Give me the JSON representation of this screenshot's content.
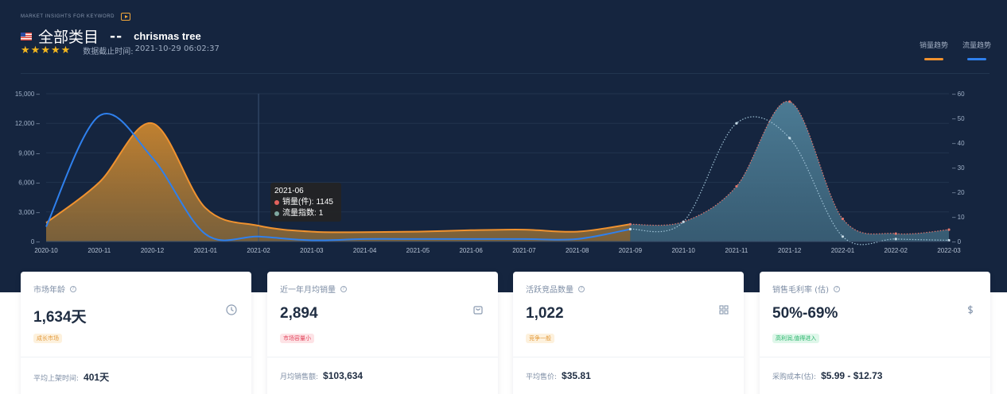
{
  "header": {
    "overline": "MARKET INSIGHTS FOR KEYWORD",
    "category": "全部类目",
    "separator": "--",
    "keyword": "chrismas tree",
    "stars": [
      "★",
      "★",
      "★",
      "★",
      "★"
    ],
    "update_label": "数据截止时间:",
    "update_time": "2021-10-29 06:02:37"
  },
  "legend": [
    {
      "label": "销量趋势",
      "color": "#f0922f"
    },
    {
      "label": "流量趋势",
      "color": "#2f80ed"
    }
  ],
  "chart_data": {
    "type": "area",
    "categories": [
      "2020-10",
      "2020-11",
      "2020-12",
      "2021-01",
      "2021-02",
      "2021-03",
      "2021-04",
      "2021-05",
      "2021-06",
      "2021-07",
      "2021-08",
      "2021-09",
      "2021-10",
      "2021-11",
      "2021-12",
      "2022-01",
      "2022-02",
      "2022-03"
    ],
    "y_left_ticks": [
      "0",
      "3,000",
      "6,000",
      "9,000",
      "12,000",
      "15,000"
    ],
    "y_left_range": [
      0,
      15000
    ],
    "y_right_ticks": [
      "0",
      "10",
      "20",
      "30",
      "40",
      "50",
      "60"
    ],
    "y_right_range": [
      0,
      60
    ],
    "series": [
      {
        "name": "销量(件)",
        "axis": "left",
        "color": "#f0922f",
        "values": [
          1900,
          6000,
          12000,
          3400,
          1600,
          1000,
          950,
          1000,
          1145,
          1200,
          1000,
          1750,
          2000,
          5600,
          14200,
          2300,
          800,
          1200
        ]
      },
      {
        "name": "流量指数",
        "axis": "right",
        "color": "#2f80ed",
        "values": [
          6,
          51,
          34,
          3,
          2,
          0.5,
          1,
          1,
          1,
          1,
          1,
          5,
          8,
          48,
          42,
          2,
          1,
          0.5
        ]
      }
    ],
    "highlight_start": "2021-09",
    "tooltip": {
      "x": "2021-06",
      "items": [
        {
          "name": "销量(件)",
          "value": "1145",
          "color": "#e6625c"
        },
        {
          "name": "流量指数",
          "value": "1",
          "color": "#7fa8a0"
        }
      ]
    }
  },
  "cards": [
    {
      "title": "市场年龄",
      "value": "1,634天",
      "tag": "成长市场",
      "foot_label": "平均上架时间:",
      "foot_value": "401天",
      "icon": "clock-icon"
    },
    {
      "title": "近一年月均销量",
      "value": "2,894",
      "tag": "市场容量小",
      "foot_label": "月均销售额:",
      "foot_value": "$103,634",
      "icon": "shopping-bag-icon"
    },
    {
      "title": "活跃竞品数量",
      "value": "1,022",
      "tag": "竞争一般",
      "foot_label": "平均售价:",
      "foot_value": "$35.81",
      "icon": "grid-icon"
    },
    {
      "title": "销售毛利率 (估)",
      "value": "50%-69%",
      "tag": "高利润,值得进入",
      "foot_label": "采购成本(估):",
      "foot_value": "$5.99 - $12.73",
      "icon": "dollar-icon"
    }
  ],
  "help_glyph": "?"
}
